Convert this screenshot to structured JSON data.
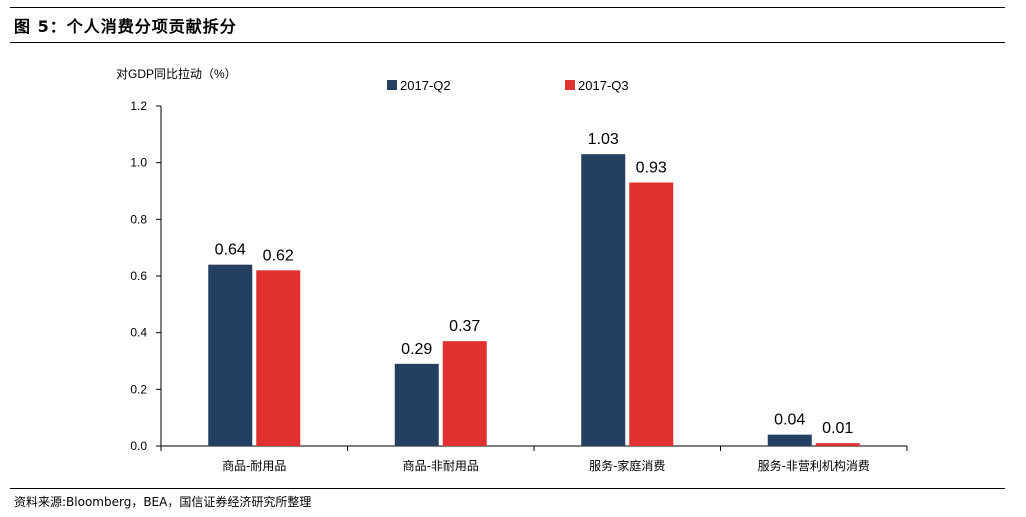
{
  "figure": {
    "title": "图 5：个人消费分项贡献拆分",
    "source": "资料来源:Bloomberg，BEA，国信证券经济研究所整理"
  },
  "chart_data": {
    "type": "bar",
    "title": "",
    "ylabel": "对GDP同比拉动（%）",
    "xlabel": "",
    "categories": [
      "商品-耐用品",
      "商品-非耐用品",
      "服务-家庭消费",
      "服务-非营利机构消费"
    ],
    "series": [
      {
        "name": "2017-Q2",
        "values": [
          0.64,
          0.29,
          1.03,
          0.04
        ],
        "color": "#243F60"
      },
      {
        "name": "2017-Q3",
        "values": [
          0.62,
          0.37,
          0.93,
          0.01
        ],
        "color": "#E03030"
      }
    ],
    "ylim": [
      0,
      1.2
    ],
    "yticks": [
      "0.0",
      "0.2",
      "0.4",
      "0.6",
      "0.8",
      "1.0",
      "1.2"
    ],
    "grid": false,
    "legend_position": "top"
  }
}
